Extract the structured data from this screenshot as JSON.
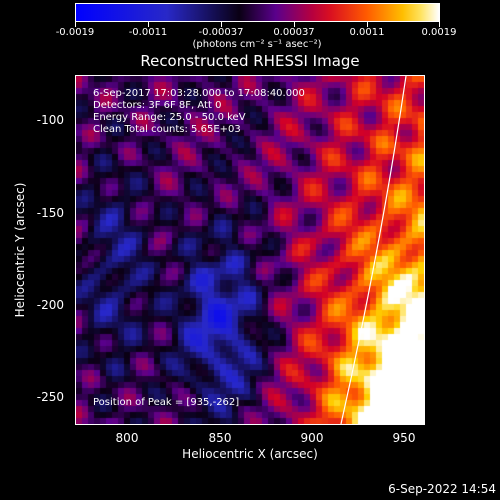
{
  "colorbar": {
    "tick_labels": [
      "-0.0019",
      "-0.0011",
      "-0.00037",
      "0.00037",
      "0.0011",
      "0.0019"
    ],
    "units": "(photons cm⁻² s⁻¹ asec⁻²)"
  },
  "title": "Reconstructed RHESSI Image",
  "info": {
    "line1": "6-Sep-2017 17:03:28.000 to 17:08:40.000",
    "line2": "Detectors: 3F 6F 8F, Att 0",
    "line3": "Energy Range: 25.0 - 50.0 keV",
    "line4": "Clean     Total counts: 5.65E+03",
    "peak": "Position of Peak = [935,-262]"
  },
  "axes": {
    "xlabel": "Heliocentric X (arcsec)",
    "ylabel": "Heliocentric Y (arcsec)",
    "xticks": [
      "800",
      "850",
      "900",
      "950"
    ],
    "yticks": [
      "-100",
      "-150",
      "-200",
      "-250"
    ]
  },
  "timestamp": "6-Sep-2022 14:54"
}
